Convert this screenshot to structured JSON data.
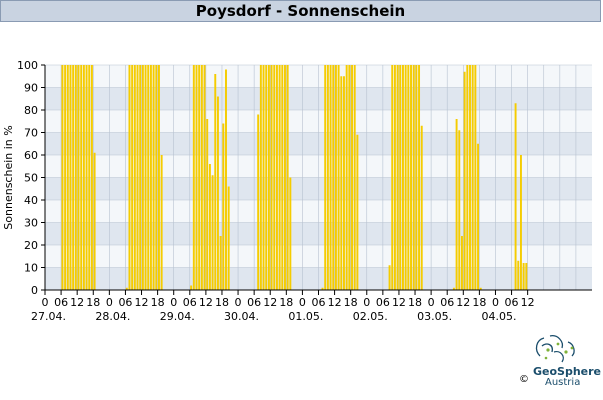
{
  "title": "Poysdorf - Sonnenschein",
  "brand": {
    "name": "GeoSphere",
    "sub": "Austria",
    "copyright": "©"
  },
  "colors": {
    "bar": "#f5cc00",
    "band_dark": "#dfe6ef",
    "band_light": "#f4f7fa",
    "grid": "#b7c2d0",
    "header_bg": "#c9d3e1"
  },
  "chart_data": {
    "type": "bar",
    "title": "Poysdorf - Sonnenschein",
    "ylabel": "Sonnenschein in %",
    "xlabel": "",
    "ylim": [
      0,
      100
    ],
    "y_ticks": [
      0,
      10,
      20,
      30,
      40,
      50,
      60,
      70,
      80,
      90,
      100
    ],
    "x_unit": "hours since 27.04. 00:00",
    "x_range": [
      0,
      204
    ],
    "x_tick_labels": [
      "0",
      "06",
      "12",
      "18",
      "0",
      "06",
      "12",
      "18",
      "0",
      "06",
      "12",
      "18",
      "0",
      "06",
      "12",
      "18",
      "0",
      "06",
      "12",
      "18",
      "0",
      "06",
      "12",
      "18",
      "0",
      "06",
      "12",
      "18",
      "0",
      "06",
      "12"
    ],
    "date_labels": [
      "27.04.",
      "28.04.",
      "29.04.",
      "30.04.",
      "01.05.",
      "02.05.",
      "03.05.",
      "04.05."
    ],
    "interval_minutes": 60,
    "values": [
      0,
      0,
      0,
      0,
      0,
      0,
      100,
      100,
      100,
      100,
      100,
      100,
      100,
      100,
      100,
      100,
      100,
      100,
      61,
      0,
      0,
      0,
      0,
      0,
      0,
      0,
      0,
      0,
      0,
      0,
      1,
      100,
      100,
      100,
      100,
      100,
      100,
      100,
      100,
      100,
      100,
      100,
      100,
      60,
      0,
      0,
      0,
      0,
      0,
      0,
      0,
      0,
      0,
      0,
      2,
      100,
      100,
      100,
      100,
      100,
      76,
      56,
      51,
      96,
      86,
      24,
      74,
      98,
      46,
      0,
      0,
      0,
      0,
      0,
      0,
      0,
      0,
      0,
      0,
      78,
      100,
      100,
      100,
      100,
      100,
      100,
      100,
      100,
      100,
      100,
      100,
      50,
      0,
      0,
      0,
      0,
      0,
      0,
      0,
      0,
      0,
      0,
      0,
      1,
      100,
      100,
      100,
      100,
      100,
      100,
      95,
      95,
      100,
      100,
      100,
      100,
      69,
      0,
      0,
      0,
      0,
      0,
      0,
      0,
      0,
      0,
      0,
      0,
      11,
      100,
      100,
      100,
      100,
      100,
      100,
      100,
      100,
      100,
      100,
      100,
      73,
      0,
      0,
      0,
      0,
      0,
      0,
      0,
      0,
      0,
      0,
      0,
      1,
      76,
      71,
      24,
      97,
      100,
      100,
      100,
      100,
      65,
      1,
      0,
      0,
      0,
      0,
      0,
      0,
      0,
      0,
      0,
      0,
      0,
      0,
      83,
      13,
      60,
      12,
      12
    ]
  }
}
